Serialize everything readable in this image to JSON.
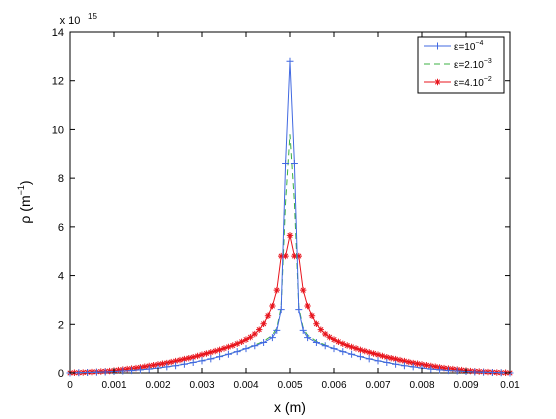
{
  "chart_data": {
    "type": "line",
    "title": "",
    "xlabel": "x (m)",
    "ylabel": "ρ (m",
    "ylabel_sup": "−1",
    "ylabel_suffix": ")",
    "y_scale_base": "x 10",
    "y_scale_exp": "15",
    "xlim": [
      0,
      0.01
    ],
    "ylim": [
      0,
      14
    ],
    "xticks": [
      "0",
      "0.001",
      "0.002",
      "0.003",
      "0.004",
      "0.005",
      "0.006",
      "0.007",
      "0.008",
      "0.009",
      "0.01"
    ],
    "yticks": [
      "0",
      "2",
      "4",
      "6",
      "8",
      "10",
      "12",
      "14"
    ],
    "grid": false,
    "legend_position": "top-right",
    "series": [
      {
        "name": "ε=10",
        "name_sup": "−4",
        "color": "#4169e1",
        "dash": "",
        "marker": "plus",
        "x": [
          0.0,
          0.0002,
          0.0004,
          0.0006,
          0.0008,
          0.001,
          0.0012,
          0.0014,
          0.0016,
          0.0018,
          0.002,
          0.0022,
          0.0024,
          0.0026,
          0.0028,
          0.003,
          0.0032,
          0.0034,
          0.0036,
          0.0038,
          0.004,
          0.0042,
          0.0044,
          0.0046,
          0.0047,
          0.0048,
          0.0049,
          0.005,
          0.0051,
          0.0052,
          0.0053,
          0.0054,
          0.0056,
          0.0058,
          0.006,
          0.0062,
          0.0064,
          0.0066,
          0.0068,
          0.007,
          0.0072,
          0.0074,
          0.0076,
          0.0078,
          0.008,
          0.0082,
          0.0084,
          0.0086,
          0.0088,
          0.009,
          0.0092,
          0.0094,
          0.0096,
          0.0098,
          0.01
        ],
        "y": [
          0.0,
          0.01,
          0.02,
          0.03,
          0.04,
          0.06,
          0.08,
          0.1,
          0.13,
          0.16,
          0.2,
          0.25,
          0.3,
          0.36,
          0.43,
          0.5,
          0.58,
          0.67,
          0.77,
          0.88,
          1.0,
          1.12,
          1.25,
          1.45,
          1.75,
          2.6,
          8.6,
          12.8,
          8.6,
          2.6,
          1.75,
          1.45,
          1.25,
          1.12,
          1.0,
          0.88,
          0.77,
          0.67,
          0.58,
          0.5,
          0.43,
          0.36,
          0.3,
          0.25,
          0.2,
          0.16,
          0.13,
          0.1,
          0.08,
          0.06,
          0.04,
          0.03,
          0.02,
          0.01,
          0.0
        ]
      },
      {
        "name": "ε=2.10",
        "name_sup": "−3",
        "color": "#3cb043",
        "dash": "6,4",
        "marker": "none",
        "x": [
          0.0,
          0.0004,
          0.0008,
          0.0012,
          0.0016,
          0.002,
          0.0024,
          0.0028,
          0.0032,
          0.0036,
          0.004,
          0.0044,
          0.0046,
          0.0047,
          0.0048,
          0.0049,
          0.005,
          0.0051,
          0.0052,
          0.0053,
          0.0054,
          0.0056,
          0.006,
          0.0064,
          0.0068,
          0.0072,
          0.0076,
          0.008,
          0.0084,
          0.0088,
          0.0092,
          0.0096,
          0.01
        ],
        "y": [
          0.0,
          0.02,
          0.04,
          0.08,
          0.13,
          0.2,
          0.3,
          0.43,
          0.58,
          0.77,
          1.0,
          1.3,
          1.55,
          1.85,
          2.7,
          7.0,
          9.8,
          7.0,
          2.7,
          1.85,
          1.55,
          1.3,
          1.0,
          0.77,
          0.58,
          0.43,
          0.3,
          0.2,
          0.13,
          0.08,
          0.04,
          0.02,
          0.0
        ]
      },
      {
        "name": "ε=4.10",
        "name_sup": "−2",
        "color": "#e8141c",
        "dash": "",
        "marker": "star",
        "x": [
          0.0,
          0.0001,
          0.0002,
          0.0003,
          0.0004,
          0.0005,
          0.0006,
          0.0007,
          0.0008,
          0.0009,
          0.001,
          0.0011,
          0.0012,
          0.0013,
          0.0014,
          0.0015,
          0.0016,
          0.0017,
          0.0018,
          0.0019,
          0.002,
          0.0021,
          0.0022,
          0.0023,
          0.0024,
          0.0025,
          0.0026,
          0.0027,
          0.0028,
          0.0029,
          0.003,
          0.0031,
          0.0032,
          0.0033,
          0.0034,
          0.0035,
          0.0036,
          0.0037,
          0.0038,
          0.0039,
          0.004,
          0.0041,
          0.0042,
          0.0043,
          0.0044,
          0.0045,
          0.0046,
          0.0047,
          0.0048,
          0.0049,
          0.005,
          0.0051,
          0.0052,
          0.0053,
          0.0054,
          0.0055,
          0.0056,
          0.0057,
          0.0058,
          0.0059,
          0.006,
          0.0061,
          0.0062,
          0.0063,
          0.0064,
          0.0065,
          0.0066,
          0.0067,
          0.0068,
          0.0069,
          0.007,
          0.0071,
          0.0072,
          0.0073,
          0.0074,
          0.0075,
          0.0076,
          0.0077,
          0.0078,
          0.0079,
          0.008,
          0.0081,
          0.0082,
          0.0083,
          0.0084,
          0.0085,
          0.0086,
          0.0087,
          0.0088,
          0.0089,
          0.009,
          0.0091,
          0.0092,
          0.0093,
          0.0094,
          0.0095,
          0.0096,
          0.0097,
          0.0098,
          0.0099,
          0.01
        ],
        "y": [
          0.0,
          0.01,
          0.01,
          0.02,
          0.03,
          0.04,
          0.05,
          0.06,
          0.07,
          0.08,
          0.1,
          0.12,
          0.14,
          0.16,
          0.18,
          0.2,
          0.23,
          0.26,
          0.29,
          0.32,
          0.35,
          0.38,
          0.41,
          0.45,
          0.49,
          0.53,
          0.57,
          0.61,
          0.65,
          0.7,
          0.75,
          0.8,
          0.85,
          0.9,
          0.95,
          1.01,
          1.07,
          1.13,
          1.2,
          1.28,
          1.37,
          1.47,
          1.6,
          1.78,
          2.02,
          2.35,
          2.75,
          3.4,
          4.8,
          4.8,
          5.65,
          4.8,
          4.8,
          3.4,
          2.75,
          2.35,
          2.02,
          1.78,
          1.6,
          1.47,
          1.37,
          1.28,
          1.2,
          1.13,
          1.07,
          1.01,
          0.95,
          0.9,
          0.85,
          0.8,
          0.75,
          0.7,
          0.65,
          0.61,
          0.57,
          0.53,
          0.49,
          0.45,
          0.41,
          0.38,
          0.35,
          0.32,
          0.29,
          0.26,
          0.23,
          0.2,
          0.18,
          0.16,
          0.14,
          0.12,
          0.1,
          0.08,
          0.07,
          0.06,
          0.05,
          0.04,
          0.03,
          0.02,
          0.01,
          0.01,
          0.0
        ]
      }
    ]
  }
}
